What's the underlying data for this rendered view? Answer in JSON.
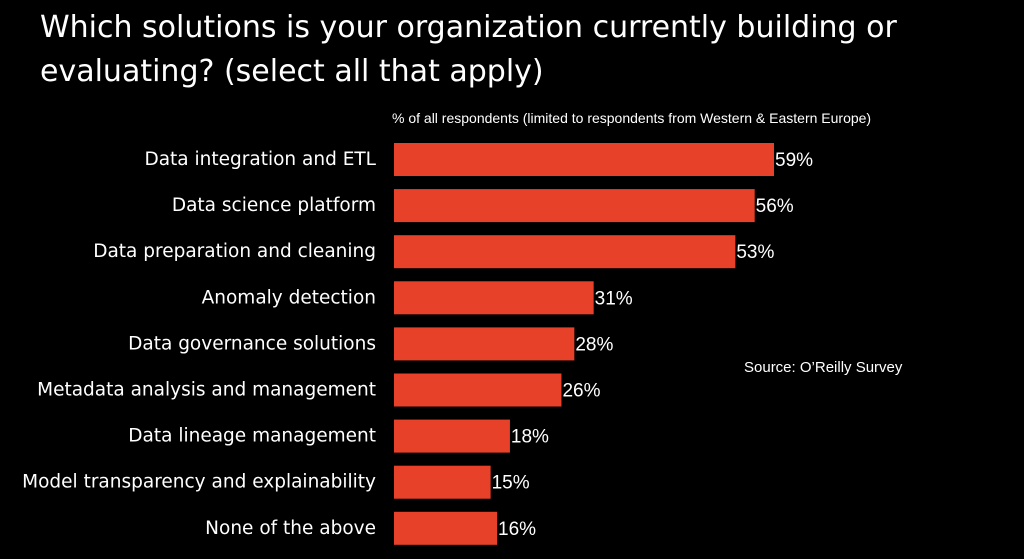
{
  "chart_data": {
    "type": "bar",
    "orientation": "horizontal",
    "title": "Which solutions is your organization currently building or evaluating? (select all that apply)",
    "subtitle": "% of all respondents (limited to respondents from Western & Eastern Europe)",
    "source": "Source: O’Reilly Survey",
    "categories": [
      "Data integration and ETL",
      "Data science platform",
      "Data preparation and cleaning",
      "Anomaly detection",
      "Data governance solutions",
      "Metadata analysis and management",
      "Data lineage management",
      "Model transparency and explainability",
      "None of the above"
    ],
    "values": [
      59,
      56,
      53,
      31,
      28,
      26,
      18,
      15,
      16
    ],
    "value_suffix": "%",
    "xlim": [
      0,
      59
    ],
    "bar_color": "#e8412a",
    "grid": false,
    "legend": "none"
  }
}
